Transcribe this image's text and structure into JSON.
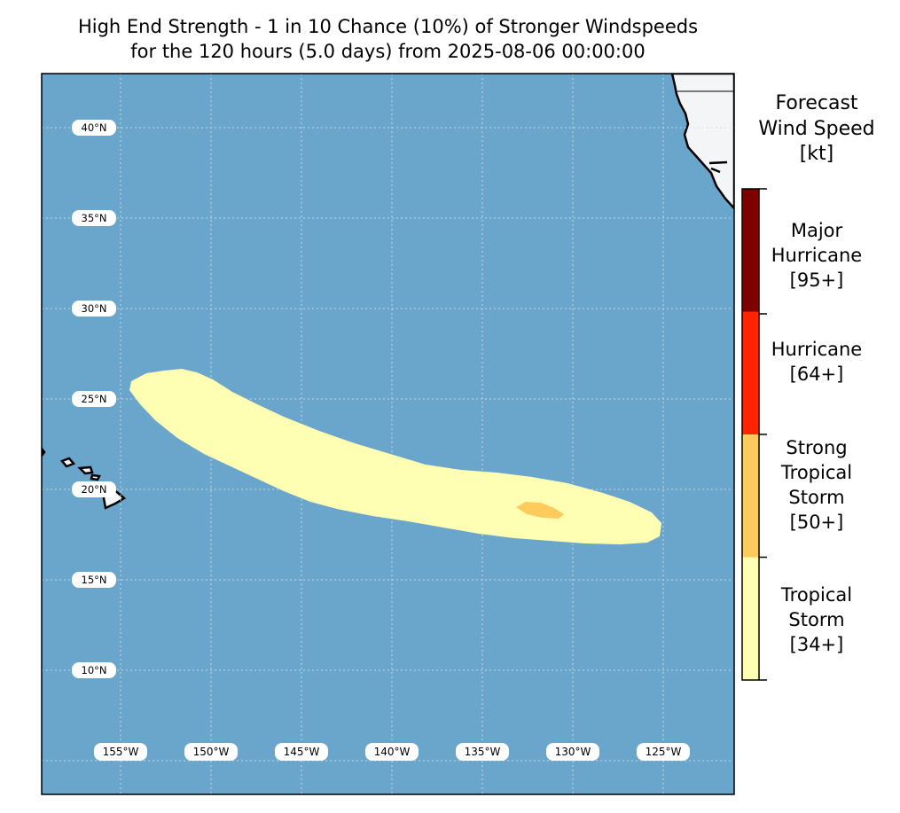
{
  "title": {
    "line1": "High End Strength - 1 in 10 Chance (10%) of Stronger Windspeeds",
    "line2": "for the 120 hours (5.0 days) from 2025-08-06 00:00:00"
  },
  "map": {
    "ocean_color": "#6aa6cc",
    "land_color": "#f4f5f7",
    "lat_labels": [
      "40°N",
      "35°N",
      "30°N",
      "25°N",
      "20°N",
      "15°N",
      "10°N"
    ],
    "lon_labels": [
      "155°W",
      "150°W",
      "145°W",
      "140°W",
      "135°W",
      "130°W",
      "125°W"
    ],
    "swath_tropical_storm_color": "#ffffb4",
    "swath_strong_ts_color": "#fecb5c"
  },
  "colorbar": {
    "title_lines": [
      "Forecast",
      "Wind Speed",
      "[kt]"
    ],
    "categories": [
      {
        "lines": [
          "Major",
          "Hurricane",
          "[95+]"
        ],
        "color": "#7f0000"
      },
      {
        "lines": [
          "Hurricane",
          "[64+]"
        ],
        "color": "#ff2400"
      },
      {
        "lines": [
          "Strong",
          "Tropical",
          "Storm",
          "[50+]"
        ],
        "color": "#fecb5c"
      },
      {
        "lines": [
          "Tropical",
          "Storm",
          "[34+]"
        ],
        "color": "#ffffb4"
      }
    ]
  }
}
